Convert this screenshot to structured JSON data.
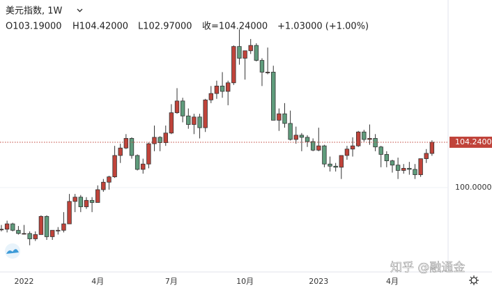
{
  "header": {
    "symbol": "美元指数, 1W",
    "open": "O103.19000",
    "high": "H104.42000",
    "low": "L102.97000",
    "close": "收=104.24000",
    "change": "+1.03000 (+1.00%)"
  },
  "watermark": "知乎 @融通金",
  "chart_data": {
    "type": "candlestick",
    "categories": [
      null,
      null,
      null,
      null,
      "2022",
      null,
      null,
      null,
      null,
      null,
      null,
      null,
      null,
      null,
      null,
      null,
      null,
      "4月",
      null,
      null,
      null,
      null,
      null,
      null,
      null,
      null,
      null,
      null,
      null,
      null,
      "7月",
      null,
      null,
      null,
      null,
      null,
      null,
      null,
      null,
      null,
      null,
      null,
      null,
      "10月",
      null,
      null,
      null,
      null,
      null,
      null,
      null,
      null,
      null,
      null,
      null,
      null,
      "2023",
      null,
      null,
      null,
      null,
      null,
      null,
      null,
      null,
      null,
      null,
      null,
      null,
      "4月",
      null,
      null,
      null,
      null,
      null,
      null,
      null
    ],
    "open": [
      96.1,
      96.1,
      96.6,
      96.0,
      95.7,
      95.7,
      95.2,
      95.6,
      97.3,
      95.4,
      96.0,
      96.0,
      96.6,
      98.7,
      99.1,
      98.2,
      98.8,
      98.6,
      99.8,
      100.5,
      101.0,
      103.0,
      103.7,
      104.6,
      103.0,
      101.7,
      102.2,
      104.1,
      104.7,
      104.2,
      105.1,
      107.0,
      108.1,
      106.7,
      105.9,
      106.6,
      105.6,
      108.2,
      108.8,
      109.5,
      109.0,
      109.8,
      113.2,
      112.1,
      112.8,
      113.3,
      111.9,
      110.8,
      110.8,
      106.3,
      106.9,
      106.0,
      104.5,
      104.9,
      104.7,
      104.3,
      103.5,
      103.9,
      102.2,
      102.0,
      101.9,
      103.0,
      103.6,
      103.9,
      105.2,
      104.5,
      104.6,
      103.8,
      103.1,
      102.5,
      102.1,
      101.6,
      101.8,
      101.7,
      101.2,
      102.7,
      103.19
    ],
    "high": [
      96.5,
      96.9,
      96.7,
      96.4,
      96.5,
      95.9,
      95.9,
      97.4,
      97.4,
      96.0,
      96.3,
      97.7,
      99.4,
      99.4,
      99.3,
      99.1,
      99.1,
      100.2,
      100.8,
      101.1,
      103.9,
      104.1,
      105.0,
      104.7,
      103.1,
      102.7,
      104.2,
      105.8,
      104.8,
      105.8,
      107.8,
      109.3,
      108.4,
      107.4,
      106.9,
      106.9,
      108.3,
      109.5,
      110.0,
      110.8,
      110.0,
      113.3,
      114.8,
      112.8,
      113.9,
      113.5,
      112.1,
      113.1,
      111.4,
      107.4,
      107.9,
      107.2,
      105.7,
      105.1,
      104.9,
      104.6,
      105.6,
      104.0,
      102.9,
      102.3,
      103.0,
      103.9,
      104.7,
      105.3,
      105.4,
      105.9,
      105.0,
      103.9,
      103.4,
      102.6,
      102.8,
      102.2,
      102.4,
      102.2,
      102.7,
      103.6,
      104.42
    ],
    "low": [
      95.9,
      95.8,
      95.9,
      95.6,
      95.6,
      94.6,
      95.0,
      95.6,
      95.1,
      95.1,
      95.6,
      95.8,
      96.6,
      97.7,
      97.7,
      98.0,
      97.7,
      98.6,
      99.6,
      99.8,
      100.9,
      102.3,
      103.6,
      102.7,
      101.6,
      101.3,
      101.8,
      103.4,
      103.4,
      103.9,
      105.0,
      106.9,
      106.1,
      105.5,
      105.0,
      104.6,
      105.2,
      107.9,
      108.3,
      108.4,
      107.7,
      109.6,
      111.5,
      110.1,
      112.5,
      111.8,
      109.5,
      110.6,
      106.3,
      105.3,
      105.6,
      104.4,
      104.1,
      103.4,
      103.8,
      103.4,
      103.4,
      101.9,
      101.5,
      101.5,
      100.8,
      102.6,
      102.9,
      103.8,
      104.3,
      104.0,
      103.4,
      101.9,
      101.9,
      101.4,
      100.8,
      101.3,
      101.2,
      100.8,
      101.0,
      102.3,
      102.97
    ],
    "close": [
      96.1,
      96.6,
      96.0,
      95.7,
      95.7,
      95.2,
      95.6,
      97.3,
      95.4,
      96.0,
      96.0,
      96.6,
      98.7,
      99.1,
      98.2,
      98.8,
      98.6,
      99.8,
      100.5,
      101.0,
      103.0,
      103.7,
      104.6,
      103.0,
      101.7,
      102.2,
      104.1,
      104.7,
      104.2,
      105.1,
      107.0,
      108.1,
      106.7,
      105.9,
      106.6,
      105.6,
      108.2,
      108.8,
      109.5,
      109.0,
      109.8,
      113.2,
      112.1,
      112.8,
      113.3,
      111.9,
      110.8,
      110.8,
      106.3,
      106.9,
      106.0,
      104.5,
      104.9,
      104.7,
      104.3,
      103.5,
      103.9,
      102.2,
      102.0,
      101.9,
      103.0,
      103.6,
      103.9,
      105.2,
      104.5,
      104.6,
      103.8,
      103.1,
      102.5,
      102.1,
      101.6,
      101.8,
      101.7,
      101.2,
      102.7,
      103.2,
      104.24
    ],
    "up_color": "#c0433a",
    "down_color": "#5f9c7c",
    "ylim": [
      92.1,
      117.55
    ],
    "yticks": [
      {
        "value": 100,
        "label": "100.00000"
      }
    ],
    "last_price": {
      "value": 104.24,
      "label": "104.24000"
    },
    "grid": true
  }
}
